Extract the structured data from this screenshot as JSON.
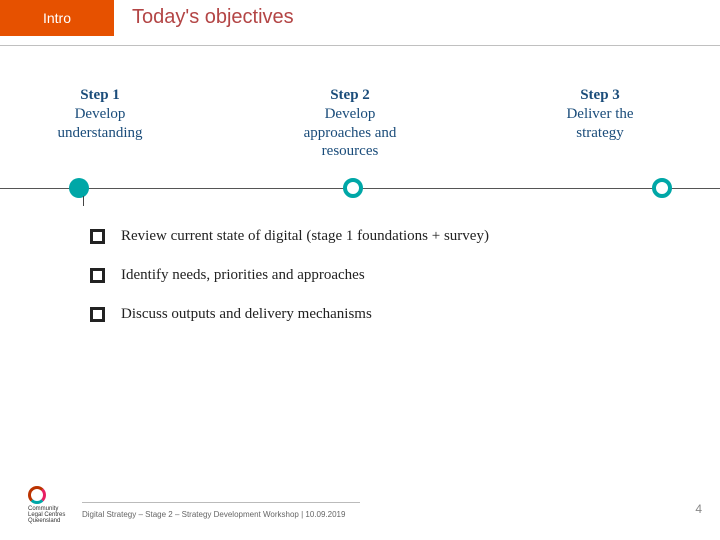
{
  "colors": {
    "accent_orange": "#e65100",
    "accent_teal": "#00a7a7",
    "line_gray": "#555555",
    "title_color": "#b34545",
    "step_color": "#1a4c7a",
    "body_text": "#222222",
    "footer_text": "#666666",
    "page_num_color": "#888888"
  },
  "header": {
    "badge": "Intro",
    "title": "Today's objectives"
  },
  "steps": [
    {
      "num": "Step 1",
      "label_line1": "Develop",
      "label_line2": "understanding",
      "filled": true,
      "pos_pct": 11
    },
    {
      "num": "Step 2",
      "label_line1": "Develop",
      "label_line2": "approaches and",
      "label_line3": "resources",
      "filled": false,
      "pos_pct": 49
    },
    {
      "num": "Step 3",
      "label_line1": "Deliver the",
      "label_line2": "strategy",
      "filled": false,
      "pos_pct": 92
    }
  ],
  "timeline": {
    "ticks_pct": [
      11.5
    ]
  },
  "objectives": [
    "Review current state of digital (stage 1 foundations + survey)",
    "Identify needs, priorities and approaches",
    "Discuss outputs and delivery mechanisms"
  ],
  "footer": {
    "logo_lines": [
      "Community",
      "Legal Centres",
      "Queensland"
    ],
    "text": "Digital Strategy – Stage 2 – Strategy Development Workshop | 10.09.2019",
    "page": "4"
  }
}
